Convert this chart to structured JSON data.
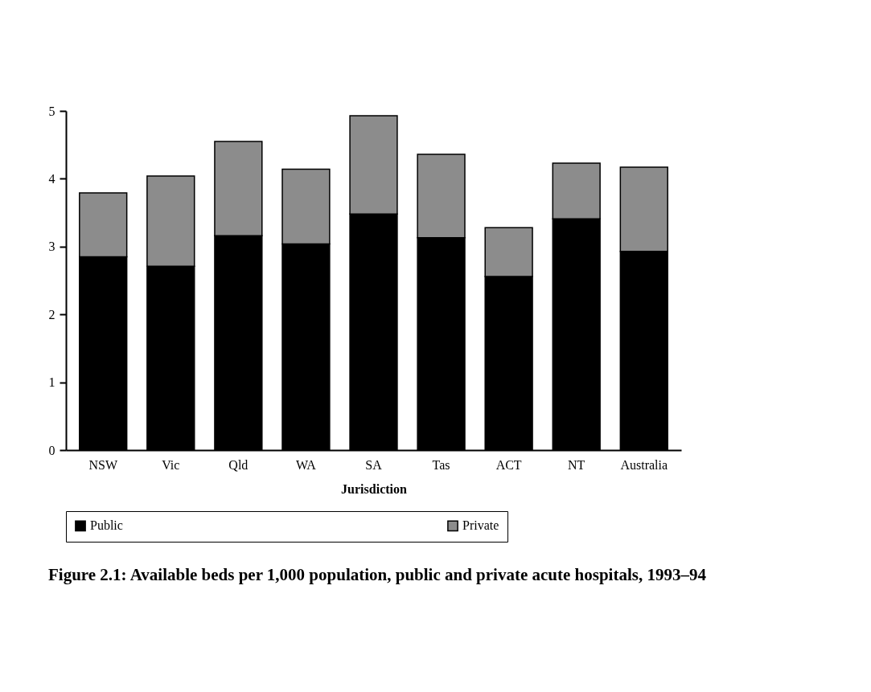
{
  "chart_data": {
    "type": "bar",
    "stacked": true,
    "title": "Figure 2.1: Available beds per 1,000 population, public and private acute hospitals, 1993–94",
    "xlabel": "Jurisdiction",
    "categories": [
      "NSW",
      "Vic",
      "Qld",
      "WA",
      "SA",
      "Tas",
      "ACT",
      "NT",
      "Australia"
    ],
    "series": [
      {
        "name": "Public",
        "color": "#000000",
        "values": [
          2.85,
          2.71,
          3.16,
          3.04,
          3.48,
          3.13,
          2.56,
          3.41,
          2.93
        ]
      },
      {
        "name": "Private",
        "color": "#8c8c8c",
        "values": [
          0.94,
          1.33,
          1.39,
          1.1,
          1.45,
          1.23,
          0.72,
          0.82,
          1.24
        ]
      }
    ],
    "ylim": [
      0,
      5
    ],
    "yticks": [
      0,
      1,
      2,
      3,
      4,
      5
    ],
    "grid": false,
    "legend": "bottom"
  }
}
